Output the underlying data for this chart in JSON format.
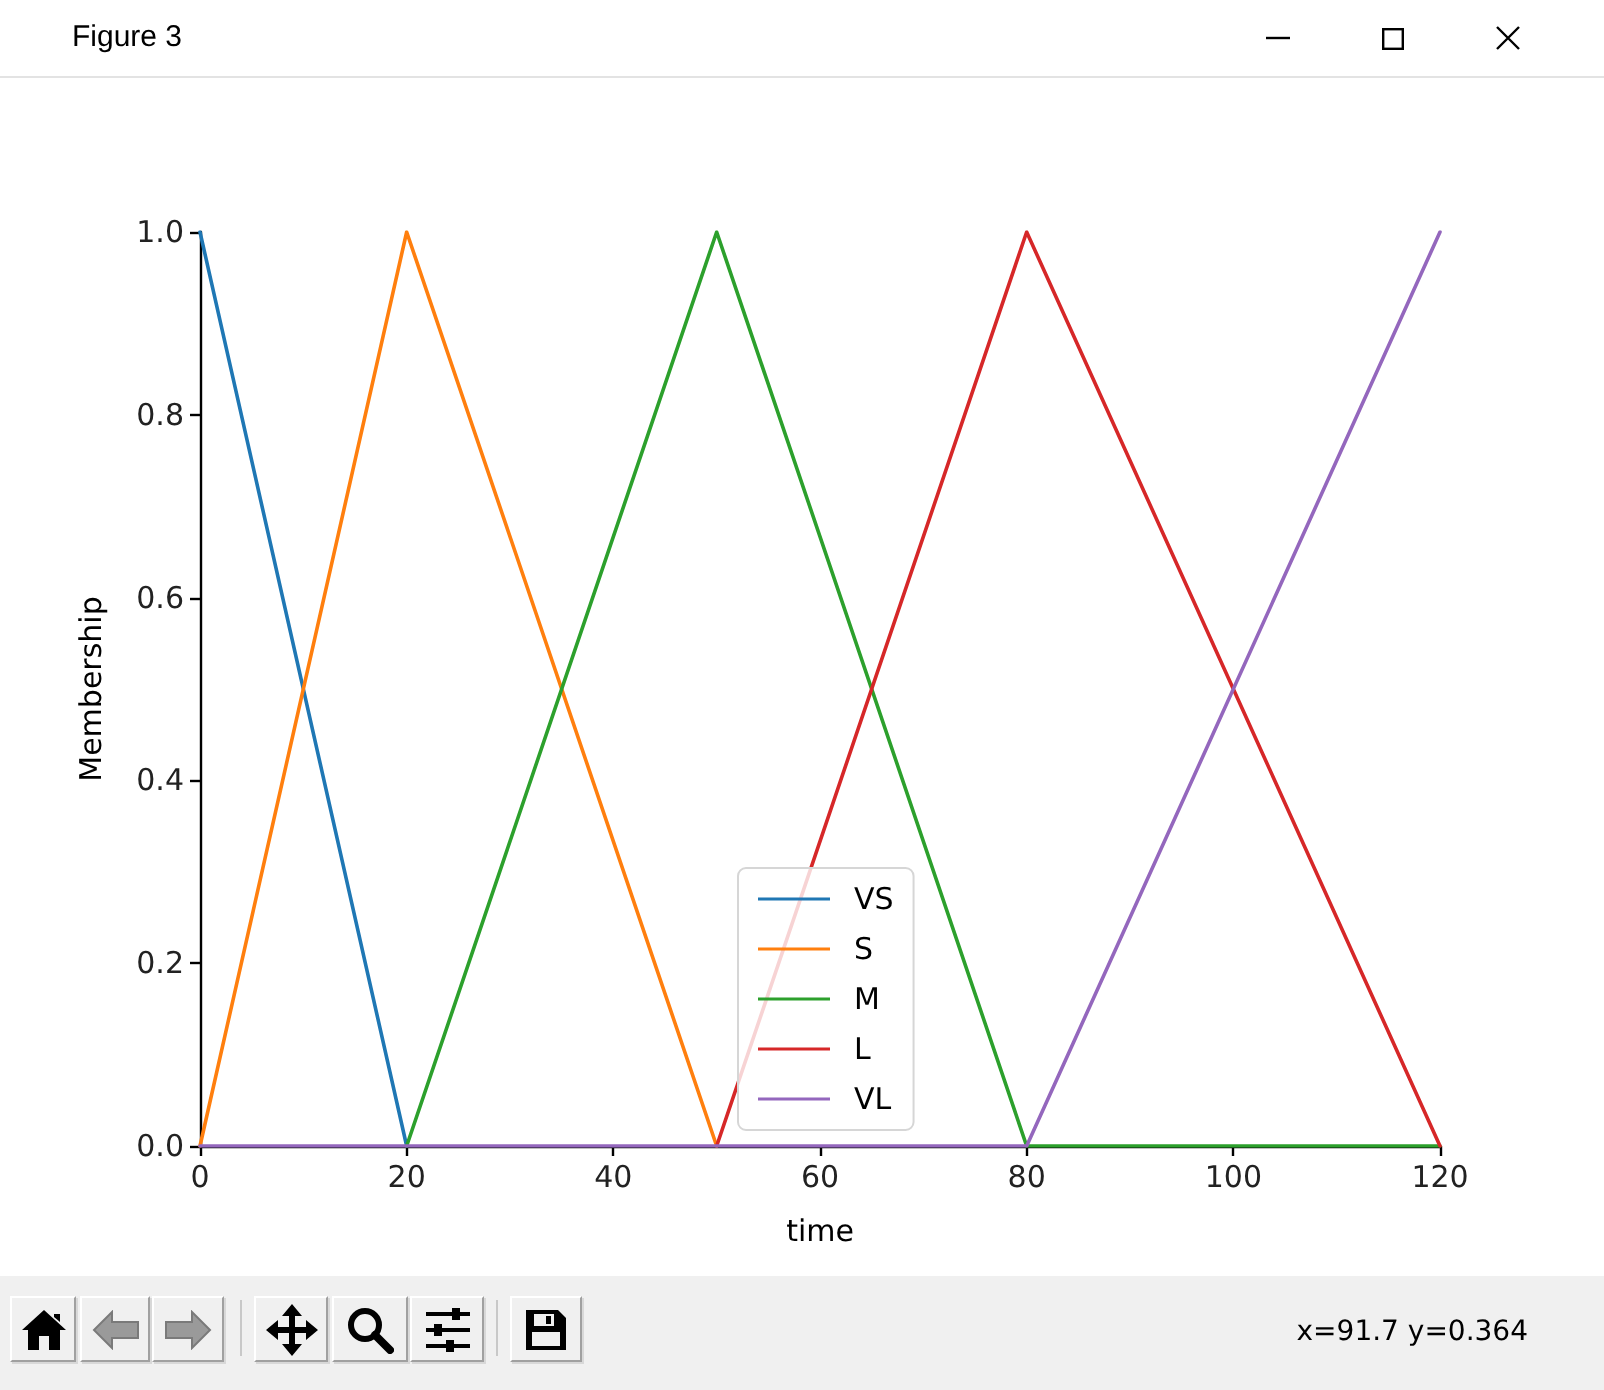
{
  "chart_data": {
    "type": "line",
    "title": "Figure 3",
    "xlabel": "time",
    "ylabel": "Membership",
    "x": [
      0,
      20,
      50,
      80,
      120
    ],
    "series": [
      {
        "name": "VS",
        "color": "#1f77b4",
        "values": [
          1,
          0,
          null,
          null,
          null
        ]
      },
      {
        "name": "S",
        "color": "#ff7f0e",
        "values": [
          0,
          1,
          0,
          null,
          null
        ]
      },
      {
        "name": "M",
        "color": "#2ca02c",
        "values": [
          null,
          0,
          1,
          0,
          0
        ]
      },
      {
        "name": "L",
        "color": "#d62728",
        "values": [
          null,
          null,
          0,
          1,
          0
        ]
      },
      {
        "name": "VL",
        "color": "#9467bd",
        "values": [
          0,
          0,
          0,
          0,
          1
        ]
      }
    ],
    "xlim": [
      0,
      120
    ],
    "xticks": [
      0,
      20,
      40,
      60,
      80,
      100,
      120
    ],
    "ylim": [
      0,
      1
    ],
    "yticks": [
      {
        "value": 0,
        "label": "0.0"
      },
      0.2,
      0.4,
      0.6,
      0.8,
      {
        "value": 1,
        "label": "1.0"
      }
    ],
    "grid": false,
    "legend": "bottom",
    "marker": "none",
    "line_style": "solid",
    "annotations": [
      "x=91.7 y=0.364"
    ]
  }
}
